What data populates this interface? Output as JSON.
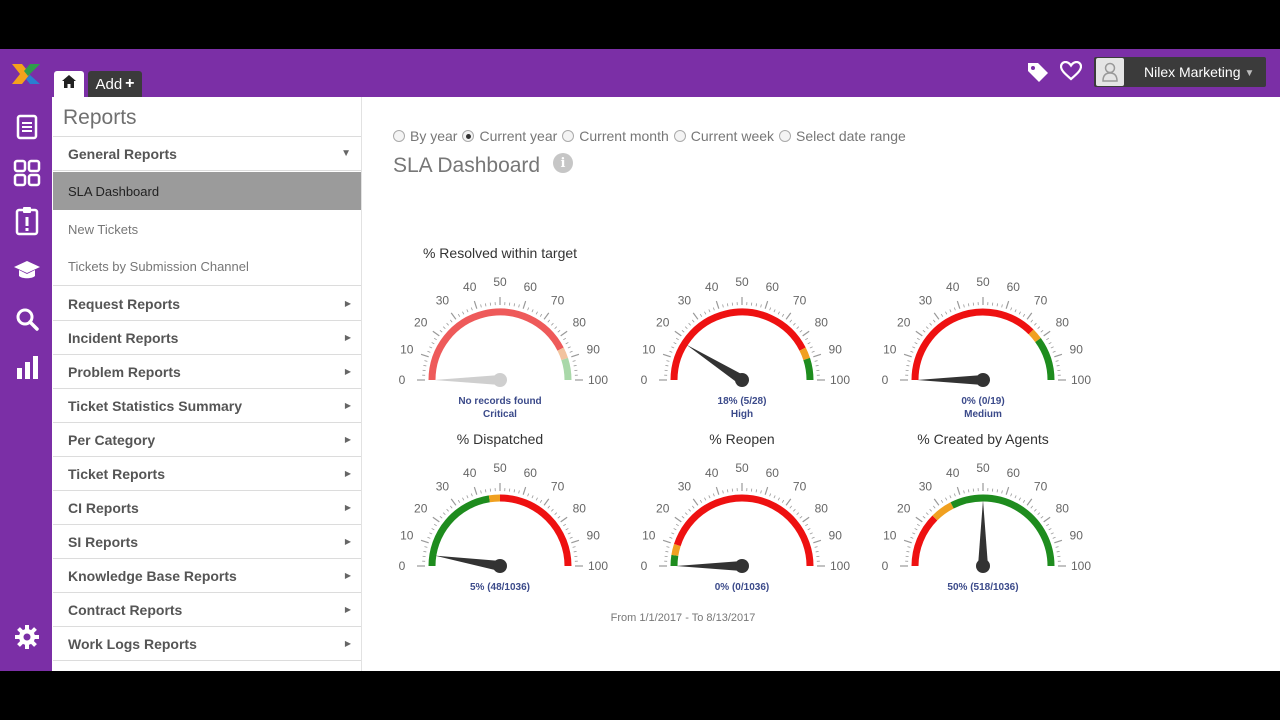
{
  "topbar": {
    "add_label": "Add",
    "add_plus": "+",
    "user_name": "Nilex Marketing",
    "icons": [
      "tag-icon",
      "heart-icon",
      "user-avatar-icon",
      "caret-down-icon"
    ]
  },
  "rail": {
    "icons": [
      "document-icon",
      "grid-icon",
      "clipboard-icon",
      "graduation-cap-icon",
      "search-icon",
      "bar-chart-icon",
      "gear-icon"
    ]
  },
  "sidebar": {
    "title": "Reports",
    "items": [
      {
        "label": "General Reports",
        "expanded": true
      },
      {
        "label": "SLA Dashboard",
        "sub": true,
        "active": true
      },
      {
        "label": "New Tickets",
        "sub": true
      },
      {
        "label": "Tickets by Submission Channel",
        "sub": true
      },
      {
        "label": "Request Reports"
      },
      {
        "label": "Incident Reports"
      },
      {
        "label": "Problem Reports"
      },
      {
        "label": "Ticket Statistics Summary"
      },
      {
        "label": "Per Category"
      },
      {
        "label": "Ticket Reports"
      },
      {
        "label": "CI Reports"
      },
      {
        "label": "SI Reports"
      },
      {
        "label": "Knowledge Base Reports"
      },
      {
        "label": "Contract Reports"
      },
      {
        "label": "Work Logs Reports"
      }
    ]
  },
  "filters": {
    "options": [
      {
        "label": "By year",
        "selected": false
      },
      {
        "label": "Current year",
        "selected": true
      },
      {
        "label": "Current month",
        "selected": false
      },
      {
        "label": "Current week",
        "selected": false
      },
      {
        "label": "Select date range",
        "selected": false
      }
    ]
  },
  "dashboard": {
    "title": "SLA Dashboard",
    "date_range": "From 1/1/2017 - To 8/13/2017"
  },
  "chart_data": [
    {
      "type": "gauge",
      "title": "% Resolved within target",
      "value": 0,
      "label": "No records found",
      "sublabel": "Critical",
      "range": [
        0,
        100
      ],
      "ticks": [
        0,
        10,
        20,
        30,
        40,
        50,
        60,
        70,
        80,
        90,
        100
      ],
      "bands": [
        {
          "from": 0,
          "to": 85,
          "color": "#ee5a5a"
        },
        {
          "from": 85,
          "to": 90,
          "color": "#f2c39e"
        },
        {
          "from": 90,
          "to": 100,
          "color": "#a9d8a9"
        }
      ],
      "needle_color": "#cfcfcf"
    },
    {
      "type": "gauge",
      "title": "",
      "value": 18,
      "label": "18% (5/28)",
      "sublabel": "High",
      "range": [
        0,
        100
      ],
      "ticks": [
        0,
        10,
        20,
        30,
        40,
        50,
        60,
        70,
        80,
        90,
        100
      ],
      "bands": [
        {
          "from": 0,
          "to": 85,
          "color": "#ee1111"
        },
        {
          "from": 85,
          "to": 90,
          "color": "#f0a020"
        },
        {
          "from": 90,
          "to": 100,
          "color": "#1e8c1e"
        }
      ],
      "needle_color": "#333333"
    },
    {
      "type": "gauge",
      "title": "",
      "value": 0,
      "label": "0% (0/19)",
      "sublabel": "Medium",
      "range": [
        0,
        100
      ],
      "ticks": [
        0,
        10,
        20,
        30,
        40,
        50,
        60,
        70,
        80,
        90,
        100
      ],
      "bands": [
        {
          "from": 0,
          "to": 75,
          "color": "#ee1111"
        },
        {
          "from": 75,
          "to": 80,
          "color": "#f0a020"
        },
        {
          "from": 80,
          "to": 100,
          "color": "#1e8c1e"
        }
      ],
      "needle_color": "#333333"
    },
    {
      "type": "gauge",
      "title": "% Dispatched",
      "value": 5,
      "label": "5% (48/1036)",
      "sublabel": "",
      "range": [
        0,
        100
      ],
      "ticks": [
        0,
        10,
        20,
        30,
        40,
        50,
        60,
        70,
        80,
        90,
        100
      ],
      "bands": [
        {
          "from": 0,
          "to": 45,
          "color": "#1e8c1e"
        },
        {
          "from": 45,
          "to": 50,
          "color": "#f0a020"
        },
        {
          "from": 50,
          "to": 100,
          "color": "#ee1111"
        }
      ],
      "needle_color": "#333333"
    },
    {
      "type": "gauge",
      "title": "% Reopen",
      "value": 0,
      "label": "0% (0/1036)",
      "sublabel": "",
      "range": [
        0,
        100
      ],
      "ticks": [
        0,
        10,
        20,
        30,
        40,
        50,
        60,
        70,
        80,
        90,
        100
      ],
      "bands": [
        {
          "from": 0,
          "to": 5,
          "color": "#1e8c1e"
        },
        {
          "from": 5,
          "to": 10,
          "color": "#f0a020"
        },
        {
          "from": 10,
          "to": 100,
          "color": "#ee1111"
        }
      ],
      "needle_color": "#333333"
    },
    {
      "type": "gauge",
      "title": "% Created by Agents",
      "value": 50,
      "label": "50% (518/1036)",
      "sublabel": "",
      "range": [
        0,
        100
      ],
      "ticks": [
        0,
        10,
        20,
        30,
        40,
        50,
        60,
        70,
        80,
        90,
        100
      ],
      "bands": [
        {
          "from": 0,
          "to": 25,
          "color": "#ee1111"
        },
        {
          "from": 25,
          "to": 35,
          "color": "#f0a020"
        },
        {
          "from": 35,
          "to": 100,
          "color": "#1e8c1e"
        }
      ],
      "needle_color": "#333333"
    }
  ],
  "colors": {
    "brand": "#7b2fa6",
    "dark": "#3b3b3b",
    "active_row": "#9b9b9b"
  }
}
